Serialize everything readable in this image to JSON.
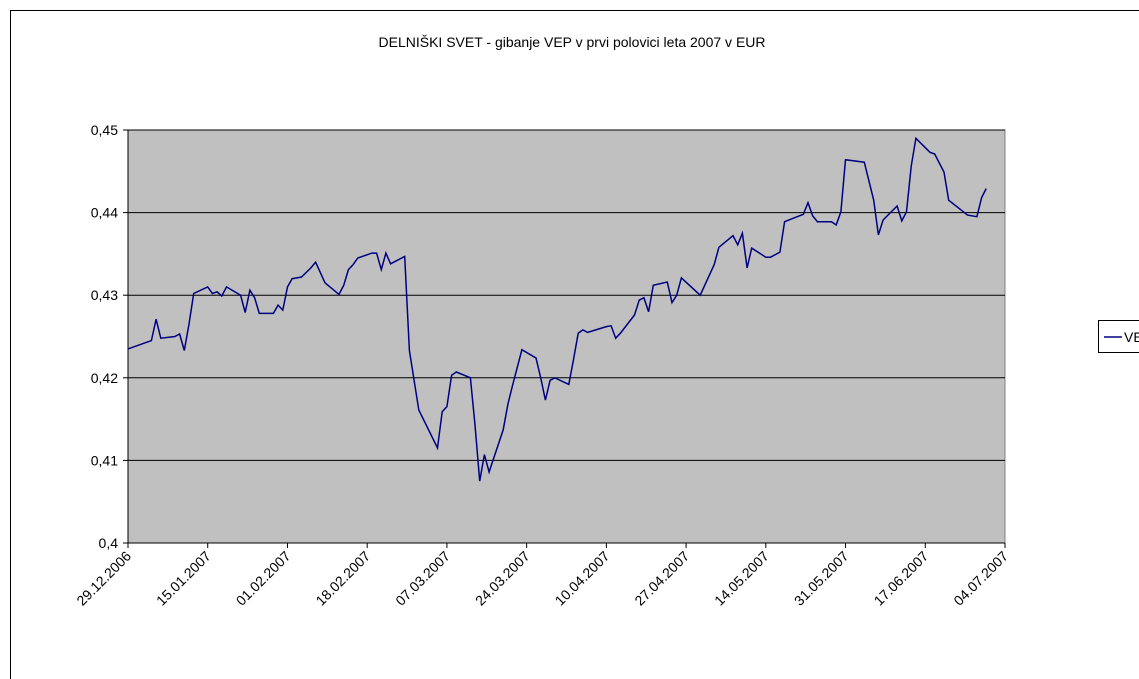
{
  "chart_data": {
    "type": "line",
    "title": "DELNIŠKI SVET - gibanje VEP v prvi polovici leta 2007 v EUR",
    "x": [
      "29.12.2006",
      "03.01.2007",
      "04.01.2007",
      "05.01.2007",
      "08.01.2007",
      "09.01.2007",
      "10.01.2007",
      "11.01.2007",
      "12.01.2007",
      "15.01.2007",
      "16.01.2007",
      "17.01.2007",
      "18.01.2007",
      "19.01.2007",
      "22.01.2007",
      "23.01.2007",
      "24.01.2007",
      "25.01.2007",
      "26.01.2007",
      "29.01.2007",
      "30.01.2007",
      "31.01.2007",
      "01.02.2007",
      "02.02.2007",
      "04.02.2007",
      "06.02.2007",
      "07.02.2007",
      "09.02.2007",
      "12.02.2007",
      "13.02.2007",
      "14.02.2007",
      "15.02.2007",
      "16.02.2007",
      "19.02.2007",
      "20.02.2007",
      "21.02.2007",
      "22.02.2007",
      "23.02.2007",
      "26.02.2007",
      "27.02.2007",
      "28.02.2007",
      "01.03.2007",
      "05.03.2007",
      "06.03.2007",
      "07.03.2007",
      "08.03.2007",
      "09.03.2007",
      "12.03.2007",
      "13.03.2007",
      "14.03.2007",
      "15.03.2007",
      "16.03.2007",
      "19.03.2007",
      "20.03.2007",
      "21.03.2007",
      "23.03.2007",
      "26.03.2007",
      "27.03.2007",
      "28.03.2007",
      "29.03.2007",
      "30.03.2007",
      "02.04.2007",
      "03.04.2007",
      "04.04.2007",
      "05.04.2007",
      "06.04.2007",
      "10.04.2007",
      "11.04.2007",
      "12.04.2007",
      "13.04.2007",
      "16.04.2007",
      "17.04.2007",
      "18.04.2007",
      "19.04.2007",
      "20.04.2007",
      "23.04.2007",
      "24.04.2007",
      "25.04.2007",
      "26.04.2007",
      "30.04.2007",
      "03.05.2007",
      "04.05.2007",
      "07.05.2007",
      "08.05.2007",
      "09.05.2007",
      "10.05.2007",
      "11.05.2007",
      "14.05.2007",
      "15.05.2007",
      "17.05.2007",
      "18.05.2007",
      "22.05.2007",
      "23.05.2007",
      "24.05.2007",
      "25.05.2007",
      "28.05.2007",
      "29.05.2007",
      "30.05.2007",
      "31.05.2007",
      "04.06.2007",
      "05.06.2007",
      "06.06.2007",
      "07.06.2007",
      "08.06.2007",
      "11.06.2007",
      "12.06.2007",
      "13.06.2007",
      "14.06.2007",
      "15.06.2007",
      "18.06.2007",
      "19.06.2007",
      "21.06.2007",
      "22.06.2007",
      "26.06.2007",
      "28.06.2007",
      "29.06.2007",
      "30.06.2007"
    ],
    "series": [
      {
        "name": "VEP",
        "color": "#000080",
        "values": [
          0.4235,
          0.4245,
          0.4271,
          0.4248,
          0.425,
          0.4253,
          0.4233,
          0.4265,
          0.4302,
          0.431,
          0.4302,
          0.4304,
          0.4299,
          0.431,
          0.43,
          0.4279,
          0.4306,
          0.4297,
          0.4278,
          0.4278,
          0.4288,
          0.4282,
          0.431,
          0.432,
          0.4322,
          0.4333,
          0.434,
          0.4315,
          0.4301,
          0.4312,
          0.4331,
          0.4337,
          0.4345,
          0.4351,
          0.4351,
          0.4331,
          0.4351,
          0.4338,
          0.4347,
          0.4233,
          0.4197,
          0.4161,
          0.4115,
          0.4159,
          0.4165,
          0.4203,
          0.4207,
          0.42,
          0.4143,
          0.4075,
          0.4107,
          0.4086,
          0.4137,
          0.4168,
          0.4191,
          0.4234,
          0.4224,
          0.42,
          0.4173,
          0.4197,
          0.42,
          0.4192,
          0.4222,
          0.4254,
          0.4258,
          0.4255,
          0.4262,
          0.4263,
          0.4248,
          0.4254,
          0.4276,
          0.4294,
          0.4297,
          0.428,
          0.4312,
          0.4316,
          0.4291,
          0.43,
          0.4321,
          0.43,
          0.4337,
          0.4358,
          0.4372,
          0.4361,
          0.4375,
          0.4333,
          0.4357,
          0.4346,
          0.4346,
          0.4352,
          0.4389,
          0.4398,
          0.4412,
          0.4396,
          0.4389,
          0.4389,
          0.4385,
          0.4401,
          0.4464,
          0.4461,
          0.4438,
          0.4415,
          0.4373,
          0.4391,
          0.4408,
          0.439,
          0.4401,
          0.4456,
          0.449,
          0.4473,
          0.4471,
          0.4449,
          0.4415,
          0.4397,
          0.4395,
          0.4418,
          0.4429
        ]
      }
    ],
    "xlim": [
      "29.12.2006",
      "04.07.2007"
    ],
    "xticks": [
      "29.12.2006",
      "15.01.2007",
      "01.02.2007",
      "18.02.2007",
      "07.03.2007",
      "24.03.2007",
      "10.04.2007",
      "27.04.2007",
      "14.05.2007",
      "31.05.2007",
      "17.06.2007",
      "04.07.2007"
    ],
    "ylim": [
      0.4,
      0.45
    ],
    "yticks": [
      {
        "value": 0.4,
        "label": "0,4"
      },
      {
        "value": 0.41,
        "label": "0,41"
      },
      {
        "value": 0.42,
        "label": "0,42"
      },
      {
        "value": 0.43,
        "label": "0,43"
      },
      {
        "value": 0.44,
        "label": "0,44"
      },
      {
        "value": 0.45,
        "label": "0,45"
      }
    ],
    "grid": true,
    "plot_background": "#c0c0c0",
    "legend": "right"
  }
}
